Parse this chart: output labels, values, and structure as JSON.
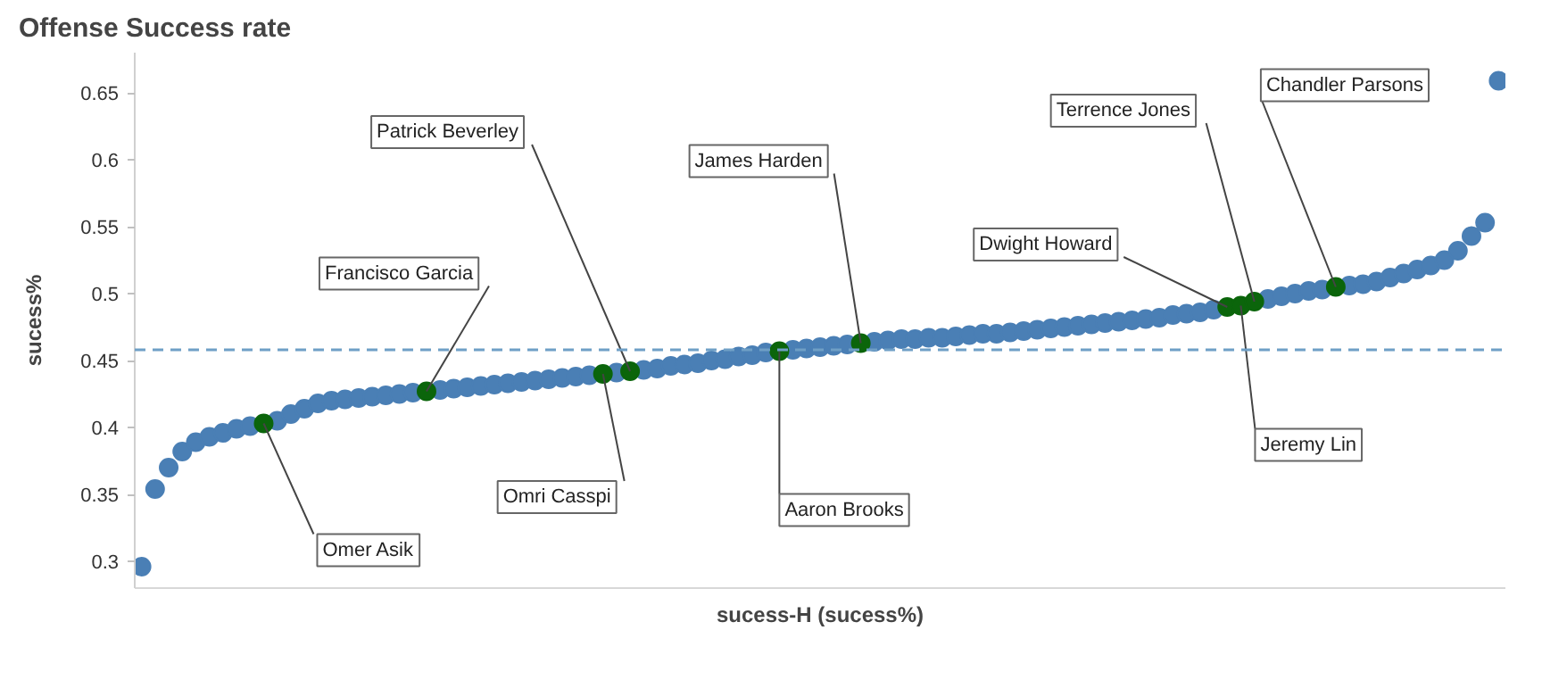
{
  "chart_data": {
    "type": "scatter",
    "title": "Offense Success rate",
    "xlabel": "sucess-H (sucess%)",
    "ylabel": "sucess%",
    "categories": [
      null,
      null,
      null,
      null,
      null,
      null,
      null,
      null,
      null,
      null,
      null,
      null,
      null,
      null,
      null,
      null,
      null,
      null,
      null,
      null,
      null,
      null,
      null,
      null,
      null,
      null,
      null,
      null,
      null,
      null,
      null,
      null,
      null,
      null,
      null,
      null,
      null,
      null,
      null,
      null,
      null,
      null,
      null,
      null,
      null,
      null,
      null,
      null,
      null,
      null,
      null,
      null,
      null,
      null,
      null,
      null,
      null,
      null,
      null,
      null,
      null,
      null,
      null,
      null,
      null,
      null,
      null,
      null,
      null,
      null,
      null,
      null,
      null,
      null,
      null,
      null,
      null,
      null,
      null,
      null,
      null,
      null,
      null,
      null,
      null,
      null,
      null,
      null,
      null,
      null,
      null,
      null,
      null,
      null,
      null,
      null,
      null,
      null,
      null,
      null,
      null
    ],
    "ylim": [
      0.28,
      0.68
    ],
    "yticks": [
      0.3,
      0.35,
      0.4,
      0.45,
      0.5,
      0.55,
      0.6,
      0.65
    ],
    "tick_labels": "y",
    "grid": false,
    "marker": "circle",
    "ref_lines": [
      {
        "axis": "y",
        "value": 0.458,
        "color": "#6f9fc6",
        "line_style": "dashed"
      }
    ],
    "series": [
      {
        "color": "#4a7fb5",
        "values": [
          0.296,
          0.354,
          0.37,
          0.382,
          0.389,
          0.393,
          0.396,
          0.399,
          0.401,
          null,
          0.405,
          0.41,
          0.414,
          0.418,
          0.42,
          0.421,
          0.422,
          0.423,
          0.424,
          0.425,
          0.426,
          null,
          0.428,
          0.429,
          0.43,
          0.431,
          0.432,
          0.433,
          0.434,
          0.435,
          0.436,
          0.437,
          0.438,
          0.439,
          null,
          0.441,
          null,
          0.443,
          0.444,
          0.446,
          0.447,
          0.448,
          0.45,
          0.451,
          0.453,
          0.454,
          0.456,
          null,
          0.458,
          0.459,
          0.46,
          0.461,
          0.462,
          null,
          0.464,
          0.465,
          0.466,
          0.466,
          0.467,
          0.467,
          0.468,
          0.469,
          0.47,
          0.47,
          0.471,
          0.472,
          0.473,
          0.474,
          0.475,
          0.476,
          0.477,
          0.478,
          0.479,
          0.48,
          0.481,
          0.482,
          0.484,
          0.485,
          0.486,
          0.488,
          null,
          null,
          null,
          0.496,
          0.498,
          0.5,
          0.502,
          0.503,
          null,
          0.506,
          0.507,
          0.509,
          0.512,
          0.515,
          0.518,
          0.521,
          0.525,
          0.532,
          0.543,
          0.553,
          0.659
        ]
      },
      {
        "name": "Omer Asik",
        "color": "#0b650b",
        "values": [
          null,
          null,
          null,
          null,
          null,
          null,
          null,
          null,
          null,
          0.403,
          null,
          null,
          null,
          null,
          null,
          null,
          null,
          null,
          null,
          null,
          null,
          null,
          null,
          null,
          null,
          null,
          null,
          null,
          null,
          null,
          null,
          null,
          null,
          null,
          null,
          null,
          null,
          null,
          null,
          null,
          null,
          null,
          null,
          null,
          null,
          null,
          null,
          null,
          null,
          null,
          null,
          null,
          null,
          null,
          null,
          null,
          null,
          null,
          null,
          null,
          null,
          null,
          null,
          null,
          null,
          null,
          null,
          null,
          null,
          null,
          null,
          null,
          null,
          null,
          null,
          null,
          null,
          null,
          null,
          null,
          null,
          null,
          null,
          null,
          null,
          null,
          null,
          null,
          null,
          null,
          null,
          null,
          null,
          null,
          null,
          null,
          null,
          null,
          null,
          null,
          null
        ]
      },
      {
        "name": "Francisco Garcia",
        "color": "#0b650b",
        "values": [
          null,
          null,
          null,
          null,
          null,
          null,
          null,
          null,
          null,
          null,
          null,
          null,
          null,
          null,
          null,
          null,
          null,
          null,
          null,
          null,
          null,
          0.427,
          null,
          null,
          null,
          null,
          null,
          null,
          null,
          null,
          null,
          null,
          null,
          null,
          null,
          null,
          null,
          null,
          null,
          null,
          null,
          null,
          null,
          null,
          null,
          null,
          null,
          null,
          null,
          null,
          null,
          null,
          null,
          null,
          null,
          null,
          null,
          null,
          null,
          null,
          null,
          null,
          null,
          null,
          null,
          null,
          null,
          null,
          null,
          null,
          null,
          null,
          null,
          null,
          null,
          null,
          null,
          null,
          null,
          null,
          null,
          null,
          null,
          null,
          null,
          null,
          null,
          null,
          null,
          null,
          null,
          null,
          null,
          null,
          null,
          null,
          null,
          null,
          null,
          null,
          null
        ]
      },
      {
        "name": "Omri Casspi",
        "color": "#0b650b",
        "values": [
          null,
          null,
          null,
          null,
          null,
          null,
          null,
          null,
          null,
          null,
          null,
          null,
          null,
          null,
          null,
          null,
          null,
          null,
          null,
          null,
          null,
          null,
          null,
          null,
          null,
          null,
          null,
          null,
          null,
          null,
          null,
          null,
          null,
          null,
          0.44,
          null,
          null,
          null,
          null,
          null,
          null,
          null,
          null,
          null,
          null,
          null,
          null,
          null,
          null,
          null,
          null,
          null,
          null,
          null,
          null,
          null,
          null,
          null,
          null,
          null,
          null,
          null,
          null,
          null,
          null,
          null,
          null,
          null,
          null,
          null,
          null,
          null,
          null,
          null,
          null,
          null,
          null,
          null,
          null,
          null,
          null,
          null,
          null,
          null,
          null,
          null,
          null,
          null,
          null,
          null,
          null,
          null,
          null,
          null,
          null,
          null,
          null,
          null,
          null,
          null,
          null
        ]
      },
      {
        "name": "Patrick Beverley",
        "color": "#0b650b",
        "values": [
          null,
          null,
          null,
          null,
          null,
          null,
          null,
          null,
          null,
          null,
          null,
          null,
          null,
          null,
          null,
          null,
          null,
          null,
          null,
          null,
          null,
          null,
          null,
          null,
          null,
          null,
          null,
          null,
          null,
          null,
          null,
          null,
          null,
          null,
          null,
          null,
          0.442,
          null,
          null,
          null,
          null,
          null,
          null,
          null,
          null,
          null,
          null,
          null,
          null,
          null,
          null,
          null,
          null,
          null,
          null,
          null,
          null,
          null,
          null,
          null,
          null,
          null,
          null,
          null,
          null,
          null,
          null,
          null,
          null,
          null,
          null,
          null,
          null,
          null,
          null,
          null,
          null,
          null,
          null,
          null,
          null,
          null,
          null,
          null,
          null,
          null,
          null,
          null,
          null,
          null,
          null,
          null,
          null,
          null,
          null,
          null,
          null,
          null,
          null,
          null,
          null
        ]
      },
      {
        "name": "Aaron Brooks",
        "color": "#0b650b",
        "values": [
          null,
          null,
          null,
          null,
          null,
          null,
          null,
          null,
          null,
          null,
          null,
          null,
          null,
          null,
          null,
          null,
          null,
          null,
          null,
          null,
          null,
          null,
          null,
          null,
          null,
          null,
          null,
          null,
          null,
          null,
          null,
          null,
          null,
          null,
          null,
          null,
          null,
          null,
          null,
          null,
          null,
          null,
          null,
          null,
          null,
          null,
          null,
          0.457,
          null,
          null,
          null,
          null,
          null,
          null,
          null,
          null,
          null,
          null,
          null,
          null,
          null,
          null,
          null,
          null,
          null,
          null,
          null,
          null,
          null,
          null,
          null,
          null,
          null,
          null,
          null,
          null,
          null,
          null,
          null,
          null,
          null,
          null,
          null,
          null,
          null,
          null,
          null,
          null,
          null,
          null,
          null,
          null,
          null,
          null,
          null,
          null,
          null,
          null,
          null,
          null,
          null
        ]
      },
      {
        "name": "James Harden",
        "color": "#0b650b",
        "values": [
          null,
          null,
          null,
          null,
          null,
          null,
          null,
          null,
          null,
          null,
          null,
          null,
          null,
          null,
          null,
          null,
          null,
          null,
          null,
          null,
          null,
          null,
          null,
          null,
          null,
          null,
          null,
          null,
          null,
          null,
          null,
          null,
          null,
          null,
          null,
          null,
          null,
          null,
          null,
          null,
          null,
          null,
          null,
          null,
          null,
          null,
          null,
          null,
          null,
          null,
          null,
          null,
          null,
          0.463,
          null,
          null,
          null,
          null,
          null,
          null,
          null,
          null,
          null,
          null,
          null,
          null,
          null,
          null,
          null,
          null,
          null,
          null,
          null,
          null,
          null,
          null,
          null,
          null,
          null,
          null,
          null,
          null,
          null,
          null,
          null,
          null,
          null,
          null,
          null,
          null,
          null,
          null,
          null,
          null,
          null,
          null,
          null,
          null,
          null,
          null,
          null
        ]
      },
      {
        "name": "Dwight Howard",
        "color": "#0b650b",
        "values": [
          null,
          null,
          null,
          null,
          null,
          null,
          null,
          null,
          null,
          null,
          null,
          null,
          null,
          null,
          null,
          null,
          null,
          null,
          null,
          null,
          null,
          null,
          null,
          null,
          null,
          null,
          null,
          null,
          null,
          null,
          null,
          null,
          null,
          null,
          null,
          null,
          null,
          null,
          null,
          null,
          null,
          null,
          null,
          null,
          null,
          null,
          null,
          null,
          null,
          null,
          null,
          null,
          null,
          null,
          null,
          null,
          null,
          null,
          null,
          null,
          null,
          null,
          null,
          null,
          null,
          null,
          null,
          null,
          null,
          null,
          null,
          null,
          null,
          null,
          null,
          null,
          null,
          null,
          null,
          null,
          0.49,
          null,
          null,
          null,
          null,
          null,
          null,
          null,
          null,
          null,
          null,
          null,
          null,
          null,
          null,
          null,
          null,
          null,
          null,
          null,
          null
        ]
      },
      {
        "name": "Jeremy Lin",
        "color": "#0b650b",
        "values": [
          null,
          null,
          null,
          null,
          null,
          null,
          null,
          null,
          null,
          null,
          null,
          null,
          null,
          null,
          null,
          null,
          null,
          null,
          null,
          null,
          null,
          null,
          null,
          null,
          null,
          null,
          null,
          null,
          null,
          null,
          null,
          null,
          null,
          null,
          null,
          null,
          null,
          null,
          null,
          null,
          null,
          null,
          null,
          null,
          null,
          null,
          null,
          null,
          null,
          null,
          null,
          null,
          null,
          null,
          null,
          null,
          null,
          null,
          null,
          null,
          null,
          null,
          null,
          null,
          null,
          null,
          null,
          null,
          null,
          null,
          null,
          null,
          null,
          null,
          null,
          null,
          null,
          null,
          null,
          null,
          null,
          0.491,
          null,
          null,
          null,
          null,
          null,
          null,
          null,
          null,
          null,
          null,
          null,
          null,
          null,
          null,
          null,
          null,
          null,
          null,
          null
        ]
      },
      {
        "name": "Terrence Jones",
        "color": "#0b650b",
        "values": [
          null,
          null,
          null,
          null,
          null,
          null,
          null,
          null,
          null,
          null,
          null,
          null,
          null,
          null,
          null,
          null,
          null,
          null,
          null,
          null,
          null,
          null,
          null,
          null,
          null,
          null,
          null,
          null,
          null,
          null,
          null,
          null,
          null,
          null,
          null,
          null,
          null,
          null,
          null,
          null,
          null,
          null,
          null,
          null,
          null,
          null,
          null,
          null,
          null,
          null,
          null,
          null,
          null,
          null,
          null,
          null,
          null,
          null,
          null,
          null,
          null,
          null,
          null,
          null,
          null,
          null,
          null,
          null,
          null,
          null,
          null,
          null,
          null,
          null,
          null,
          null,
          null,
          null,
          null,
          null,
          null,
          null,
          0.494,
          null,
          null,
          null,
          null,
          null,
          null,
          null,
          null,
          null,
          null,
          null,
          null,
          null,
          null,
          null,
          null,
          null,
          null
        ]
      },
      {
        "name": "Chandler Parsons",
        "color": "#0b650b",
        "values": [
          null,
          null,
          null,
          null,
          null,
          null,
          null,
          null,
          null,
          null,
          null,
          null,
          null,
          null,
          null,
          null,
          null,
          null,
          null,
          null,
          null,
          null,
          null,
          null,
          null,
          null,
          null,
          null,
          null,
          null,
          null,
          null,
          null,
          null,
          null,
          null,
          null,
          null,
          null,
          null,
          null,
          null,
          null,
          null,
          null,
          null,
          null,
          null,
          null,
          null,
          null,
          null,
          null,
          null,
          null,
          null,
          null,
          null,
          null,
          null,
          null,
          null,
          null,
          null,
          null,
          null,
          null,
          null,
          null,
          null,
          null,
          null,
          null,
          null,
          null,
          null,
          null,
          null,
          null,
          null,
          null,
          null,
          null,
          null,
          null,
          null,
          null,
          null,
          0.505,
          null,
          null,
          null,
          null,
          null,
          null,
          null,
          null,
          null,
          null,
          null,
          null
        ]
      }
    ]
  }
}
